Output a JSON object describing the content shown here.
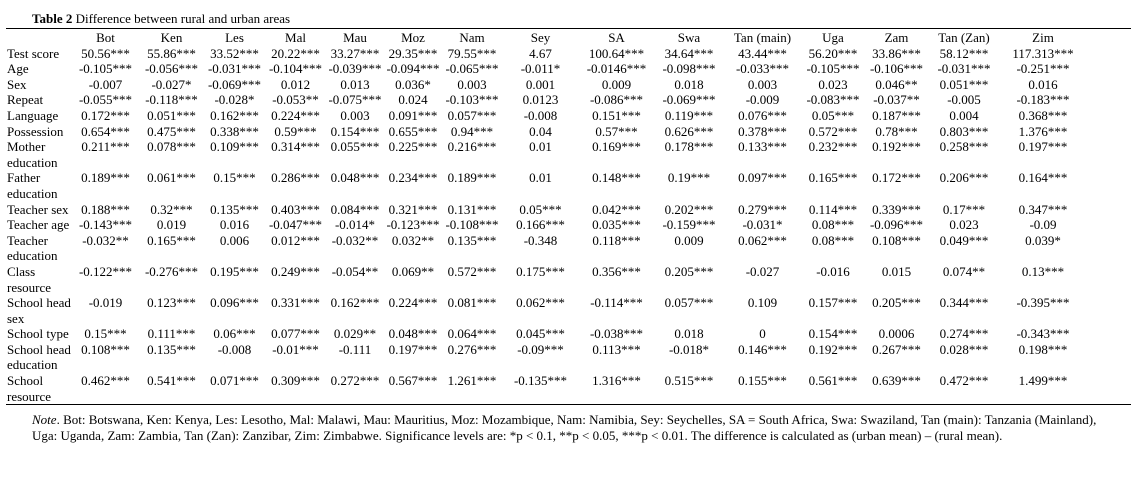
{
  "title": {
    "label": "Table 2",
    "text": "Difference between rural and urban areas"
  },
  "columns": [
    "Bot",
    "Ken",
    "Les",
    "Mal",
    "Mau",
    "Moz",
    "Nam",
    "Sey",
    "SA",
    "Swa",
    "Tan (main)",
    "Uga",
    "Zam",
    "Tan (Zan)",
    "Zim"
  ],
  "rows": [
    {
      "label": "Test score",
      "values": [
        "50.56***",
        "55.86***",
        "33.52***",
        "20.22***",
        "33.27***",
        "29.35***",
        "79.55***",
        "4.67",
        "100.64***",
        "34.64***",
        "43.44***",
        "56.20***",
        "33.86***",
        "58.12***",
        "117.313***"
      ]
    },
    {
      "label": "Age",
      "values": [
        "-0.105***",
        "-0.056***",
        "-0.031***",
        "-0.104***",
        "-0.039***",
        "-0.094***",
        "-0.065***",
        "-0.011*",
        "-0.0146***",
        "-0.098***",
        "-0.033***",
        "-0.105***",
        "-0.106***",
        "-0.031***",
        "-0.251***"
      ]
    },
    {
      "label": "Sex",
      "values": [
        "-0.007",
        "-0.027*",
        "-0.069***",
        "0.012",
        "0.013",
        "0.036*",
        "0.003",
        "0.001",
        "0.009",
        "0.018",
        "0.003",
        "0.023",
        "0.046**",
        "0.051***",
        "0.016"
      ]
    },
    {
      "label": "Repeat",
      "values": [
        "-0.055***",
        "-0.118***",
        "-0.028*",
        "-0.053**",
        "-0.075***",
        "0.024",
        "-0.103***",
        "0.0123",
        "-0.086***",
        "-0.069***",
        "-0.009",
        "-0.083***",
        "-0.037**",
        "-0.005",
        "-0.183***"
      ]
    },
    {
      "label": "Language",
      "values": [
        "0.172***",
        "0.051***",
        "0.162***",
        "0.224***",
        "0.003",
        "0.091***",
        "0.057***",
        "-0.008",
        "0.151***",
        "0.119***",
        "0.076***",
        "0.05***",
        "0.187***",
        "0.004",
        "0.368***"
      ]
    },
    {
      "label": "Possession",
      "values": [
        "0.654***",
        "0.475***",
        "0.338***",
        "0.59***",
        "0.154***",
        "0.655***",
        "0.94***",
        "0.04",
        "0.57***",
        "0.626***",
        "0.378***",
        "0.572***",
        "0.78***",
        "0.803***",
        "1.376***"
      ]
    },
    {
      "label": "Mother education",
      "values": [
        "0.211***",
        "0.078***",
        "0.109***",
        "0.314***",
        "0.055***",
        "0.225***",
        "0.216***",
        "0.01",
        "0.169***",
        "0.178***",
        "0.133***",
        "0.232***",
        "0.192***",
        "0.258***",
        "0.197***"
      ]
    },
    {
      "label": "Father education",
      "values": [
        "0.189***",
        "0.061***",
        "0.15***",
        "0.286***",
        "0.048***",
        "0.234***",
        "0.189***",
        "0.01",
        "0.148***",
        "0.19***",
        "0.097***",
        "0.165***",
        "0.172***",
        "0.206***",
        "0.164***"
      ]
    },
    {
      "label": "Teacher sex",
      "values": [
        "0.188***",
        "0.32***",
        "0.135***",
        "0.403***",
        "0.084***",
        "0.321***",
        "0.131***",
        "0.05***",
        "0.042***",
        "0.202***",
        "0.279***",
        "0.114***",
        "0.339***",
        "0.17***",
        "0.347***"
      ]
    },
    {
      "label": "Teacher age",
      "values": [
        "-0.143***",
        "0.019",
        "0.016",
        "-0.047***",
        "-0.014*",
        "-0.123***",
        "-0.108***",
        "0.166***",
        "0.035***",
        "-0.159***",
        "-0.031*",
        "0.08***",
        "-0.096***",
        "0.023",
        "-0.09"
      ]
    },
    {
      "label": "Teacher education",
      "values": [
        "-0.032**",
        "0.165***",
        "0.006",
        "0.012***",
        "-0.032**",
        "0.032**",
        "0.135***",
        "-0.348",
        "0.118***",
        "0.009",
        "0.062***",
        "0.08***",
        "0.108***",
        "0.049***",
        "0.039*"
      ]
    },
    {
      "label": "Class resource",
      "values": [
        "-0.122***",
        "-0.276***",
        "0.195***",
        "0.249***",
        "-0.054**",
        "0.069**",
        "0.572***",
        "0.175***",
        "0.356***",
        "0.205***",
        "-0.027",
        "-0.016",
        "0.015",
        "0.074**",
        "0.13***"
      ]
    },
    {
      "label": "School head sex",
      "values": [
        "-0.019",
        "0.123***",
        "0.096***",
        "0.331***",
        "0.162***",
        "0.224***",
        "0.081***",
        "0.062***",
        "-0.114***",
        "0.057***",
        "0.109",
        "0.157***",
        "0.205***",
        "0.344***",
        "-0.395***"
      ]
    },
    {
      "label": "School type",
      "values": [
        "0.15***",
        "0.111***",
        "0.06***",
        "0.077***",
        "0.029**",
        "0.048***",
        "0.064***",
        "0.045***",
        "-0.038***",
        "0.018",
        "0",
        "0.154***",
        "0.0006",
        "0.274***",
        "-0.343***"
      ]
    },
    {
      "label": "School head education",
      "values": [
        "0.108***",
        "0.135***",
        "-0.008",
        "-0.01***",
        "-0.111",
        "0.197***",
        "0.276***",
        "-0.09***",
        "0.113***",
        "-0.018*",
        "0.146***",
        "0.192***",
        "0.267***",
        "0.028***",
        "0.198***"
      ]
    },
    {
      "label": "School resource",
      "values": [
        "0.462***",
        "0.541***",
        "0.071***",
        "0.309***",
        "0.272***",
        "0.567***",
        "1.261***",
        "-0.135***",
        "1.316***",
        "0.515***",
        "0.155***",
        "0.561***",
        "0.639***",
        "0.472***",
        "1.499***"
      ]
    }
  ],
  "note": {
    "label": "Note",
    "text": ". Bot: Botswana, Ken: Kenya, Les: Lesotho, Mal: Malawi, Mau: Mauritius, Moz: Mozambique, Nam: Namibia, Sey: Seychelles, SA = South Africa, Swa: Swaziland, Tan (main): Tanzania (Mainland), Uga: Uganda, Zam: Zambia, Tan (Zan): Zanzibar, Zim: Zimbabwe. Significance levels are: *p < 0.1, **p < 0.05, ***p < 0.01. The difference is calculated as (urban mean) – (rural mean)."
  }
}
